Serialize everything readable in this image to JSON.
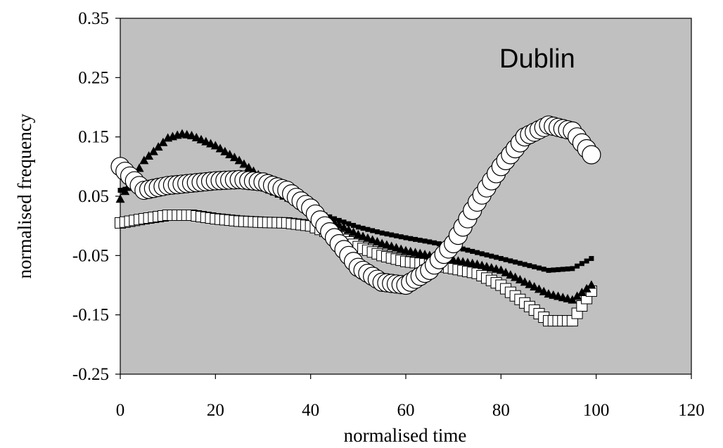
{
  "chart_data": {
    "type": "scatter",
    "annotation": "Dublin",
    "xlabel": "normalised time",
    "ylabel": "normalised frequency",
    "xlim": [
      0,
      120
    ],
    "ylim": [
      -0.25,
      0.35
    ],
    "xticks": [
      "0",
      "20",
      "40",
      "60",
      "80",
      "100",
      "120"
    ],
    "yticks": [
      "0.35",
      "0.25",
      "0.15",
      "0.05",
      "-0.05",
      "-0.15",
      "-0.25"
    ],
    "plot_background": "#c0c0c0",
    "grid": false,
    "legend": "none",
    "series": [
      {
        "marker": "open-circle",
        "x": [
          0,
          5,
          10,
          15,
          20,
          25,
          30,
          35,
          40,
          45,
          50,
          55,
          60,
          65,
          70,
          75,
          80,
          85,
          90,
          95,
          99
        ],
        "y": [
          0.1,
          0.06,
          0.068,
          0.072,
          0.076,
          0.078,
          0.074,
          0.06,
          0.03,
          -0.02,
          -0.07,
          -0.095,
          -0.1,
          -0.075,
          -0.03,
          0.04,
          0.1,
          0.15,
          0.17,
          0.16,
          0.12
        ]
      },
      {
        "marker": "filled-triangle",
        "x": [
          0,
          5,
          10,
          13,
          15,
          20,
          25,
          30,
          35,
          40,
          45,
          50,
          55,
          60,
          65,
          70,
          75,
          80,
          85,
          90,
          95,
          99
        ],
        "y": [
          0.045,
          0.11,
          0.148,
          0.155,
          0.152,
          0.135,
          0.11,
          0.08,
          0.055,
          0.03,
          0.005,
          -0.015,
          -0.03,
          -0.042,
          -0.05,
          -0.058,
          -0.065,
          -0.075,
          -0.095,
          -0.115,
          -0.125,
          -0.1
        ]
      },
      {
        "marker": "small-filled-square",
        "x": [
          0,
          5,
          10,
          15,
          20,
          25,
          30,
          35,
          40,
          45,
          50,
          55,
          60,
          65,
          70,
          75,
          80,
          85,
          90,
          95,
          99
        ],
        "y": [
          0.06,
          0.068,
          0.072,
          0.075,
          0.076,
          0.072,
          0.062,
          0.045,
          0.028,
          0.012,
          -0.002,
          -0.012,
          -0.02,
          -0.027,
          -0.035,
          -0.045,
          -0.055,
          -0.065,
          -0.075,
          -0.072,
          -0.055
        ]
      },
      {
        "marker": "open-square",
        "x": [
          0,
          5,
          10,
          15,
          20,
          25,
          30,
          35,
          40,
          45,
          50,
          55,
          60,
          65,
          70,
          75,
          80,
          85,
          90,
          95,
          99
        ],
        "y": [
          0.005,
          0.012,
          0.018,
          0.018,
          0.012,
          0.008,
          0.006,
          0.005,
          0.0,
          -0.015,
          -0.035,
          -0.05,
          -0.06,
          -0.065,
          -0.072,
          -0.08,
          -0.1,
          -0.13,
          -0.16,
          -0.16,
          -0.11
        ]
      }
    ]
  }
}
